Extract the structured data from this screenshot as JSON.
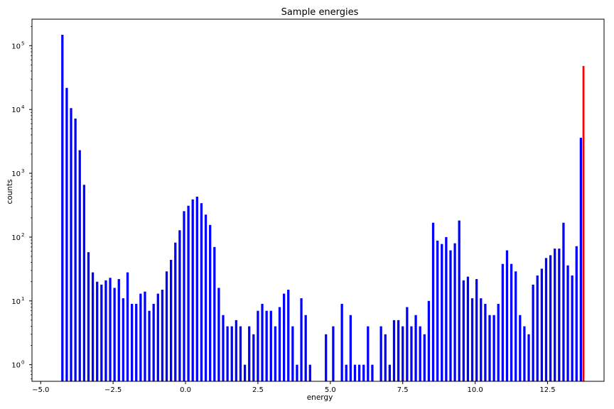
{
  "chart_data": {
    "type": "bar",
    "title": "Sample energies",
    "xlabel": "energy",
    "ylabel": "counts",
    "xlim": [
      -5.3,
      14.45
    ],
    "ylim": [
      0.55,
      260000
    ],
    "yscale": "log",
    "grid": false,
    "legend": "none",
    "colors": {
      "series": "#0000ff",
      "highlight": "#ff0000",
      "axes": "#000000"
    },
    "x_ticks": [
      "−5.0",
      "−2.5",
      "0.0",
      "2.5",
      "5.0",
      "7.5",
      "10.0",
      "12.5"
    ],
    "x_tick_values": [
      -5.0,
      -2.5,
      0.0,
      2.5,
      5.0,
      7.5,
      10.0,
      12.5
    ],
    "y_ticks": [
      {
        "value": 1,
        "base": "10",
        "exp": "0"
      },
      {
        "value": 10,
        "base": "10",
        "exp": "1"
      },
      {
        "value": 100,
        "base": "10",
        "exp": "2"
      },
      {
        "value": 1000,
        "base": "10",
        "exp": "3"
      },
      {
        "value": 10000,
        "base": "10",
        "exp": "4"
      },
      {
        "value": 100000,
        "base": "10",
        "exp": "5"
      }
    ],
    "bar_width": 0.08,
    "series": [
      {
        "color": "#0000ff",
        "points": [
          [
            -4.25,
            148000
          ],
          [
            -4.1,
            21800
          ],
          [
            -3.95,
            10500
          ],
          [
            -3.8,
            7200
          ],
          [
            -3.65,
            2300
          ],
          [
            -3.5,
            660
          ],
          [
            -3.35,
            58
          ],
          [
            -3.2,
            28
          ],
          [
            -3.05,
            20
          ],
          [
            -2.9,
            18
          ],
          [
            -2.75,
            21
          ],
          [
            -2.6,
            23
          ],
          [
            -2.45,
            16
          ],
          [
            -2.3,
            22
          ],
          [
            -2.15,
            11
          ],
          [
            -2.0,
            28
          ],
          [
            -1.85,
            9
          ],
          [
            -1.7,
            9
          ],
          [
            -1.55,
            13
          ],
          [
            -1.4,
            14
          ],
          [
            -1.25,
            7
          ],
          [
            -1.1,
            9
          ],
          [
            -0.95,
            13
          ],
          [
            -0.8,
            15
          ],
          [
            -0.65,
            29
          ],
          [
            -0.5,
            44
          ],
          [
            -0.35,
            82
          ],
          [
            -0.2,
            128
          ],
          [
            -0.05,
            255
          ],
          [
            0.1,
            310
          ],
          [
            0.25,
            390
          ],
          [
            0.4,
            430
          ],
          [
            0.55,
            340
          ],
          [
            0.7,
            225
          ],
          [
            0.85,
            155
          ],
          [
            1.0,
            70
          ],
          [
            1.15,
            16
          ],
          [
            1.3,
            6
          ],
          [
            1.45,
            4
          ],
          [
            1.6,
            4
          ],
          [
            1.75,
            5
          ],
          [
            1.9,
            4
          ],
          [
            2.05,
            1
          ],
          [
            2.2,
            4
          ],
          [
            2.35,
            3
          ],
          [
            2.5,
            7
          ],
          [
            2.65,
            9
          ],
          [
            2.8,
            7
          ],
          [
            2.95,
            7
          ],
          [
            3.1,
            4
          ],
          [
            3.25,
            8
          ],
          [
            3.4,
            13
          ],
          [
            3.55,
            15
          ],
          [
            3.7,
            4
          ],
          [
            3.85,
            1
          ],
          [
            4.0,
            11
          ],
          [
            4.15,
            6
          ],
          [
            4.3,
            1
          ],
          [
            4.85,
            3
          ],
          [
            5.1,
            4
          ],
          [
            5.4,
            9
          ],
          [
            5.55,
            1
          ],
          [
            5.7,
            6
          ],
          [
            5.85,
            1
          ],
          [
            6.0,
            1
          ],
          [
            6.15,
            1
          ],
          [
            6.3,
            4
          ],
          [
            6.45,
            1
          ],
          [
            6.75,
            4
          ],
          [
            6.9,
            3
          ],
          [
            7.05,
            1
          ],
          [
            7.2,
            5
          ],
          [
            7.35,
            5
          ],
          [
            7.5,
            4
          ],
          [
            7.65,
            8
          ],
          [
            7.8,
            4
          ],
          [
            7.95,
            6
          ],
          [
            8.1,
            4
          ],
          [
            8.25,
            3
          ],
          [
            8.4,
            10
          ],
          [
            8.55,
            168
          ],
          [
            8.7,
            88
          ],
          [
            8.85,
            78
          ],
          [
            9.0,
            100
          ],
          [
            9.15,
            62
          ],
          [
            9.3,
            80
          ],
          [
            9.45,
            182
          ],
          [
            9.6,
            21
          ],
          [
            9.75,
            24
          ],
          [
            9.9,
            11
          ],
          [
            10.05,
            22
          ],
          [
            10.2,
            11
          ],
          [
            10.35,
            9
          ],
          [
            10.5,
            6
          ],
          [
            10.65,
            6
          ],
          [
            10.8,
            9
          ],
          [
            10.95,
            38
          ],
          [
            11.1,
            62
          ],
          [
            11.25,
            38
          ],
          [
            11.4,
            29
          ],
          [
            11.55,
            6
          ],
          [
            11.7,
            4
          ],
          [
            11.85,
            3
          ],
          [
            12.0,
            18
          ],
          [
            12.15,
            25
          ],
          [
            12.3,
            32
          ],
          [
            12.45,
            47
          ],
          [
            12.6,
            52
          ],
          [
            12.75,
            66
          ],
          [
            12.9,
            66
          ],
          [
            13.05,
            168
          ],
          [
            13.2,
            36
          ],
          [
            13.35,
            25
          ],
          [
            13.5,
            72
          ],
          [
            13.65,
            3600
          ]
        ]
      },
      {
        "color": "#ff0000",
        "points": [
          [
            13.74,
            48000
          ]
        ]
      }
    ]
  }
}
